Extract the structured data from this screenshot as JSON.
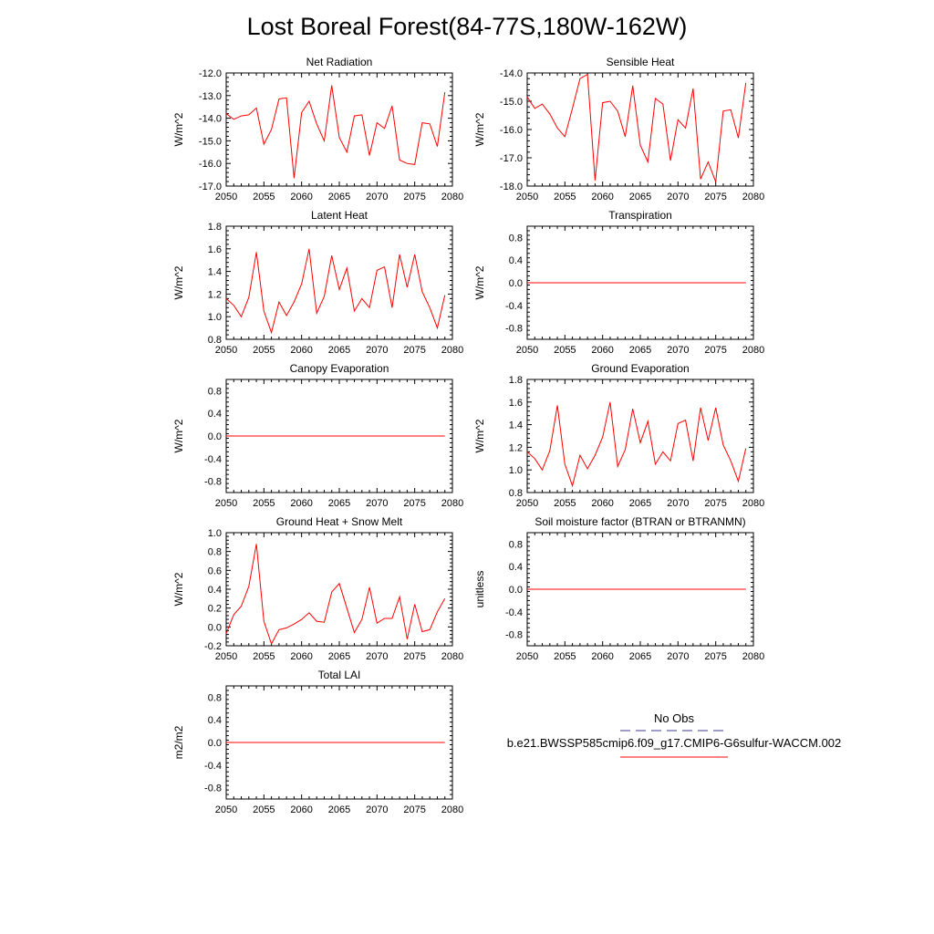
{
  "title": "Lost Boreal Forest(84-77S,180W-162W)",
  "chart_data": [
    {
      "type": "line",
      "title": "Net Radiation",
      "ylabel": "W/m^2",
      "xlim": [
        2050,
        2080
      ],
      "ylim": [
        -17.0,
        -12.0
      ],
      "xticks": [
        2050,
        2055,
        2060,
        2065,
        2070,
        2075,
        2080
      ],
      "xtick_labels": [
        "2050",
        "2055",
        "2060",
        "2065",
        "2070",
        "2075",
        "2080"
      ],
      "yticks": [
        -17.0,
        -16.0,
        -15.0,
        -14.0,
        -13.0,
        -12.0
      ],
      "ytick_labels": [
        "-17.0",
        "-16.0",
        "-15.0",
        "-14.0",
        "-13.0",
        "-12.0"
      ],
      "x": [
        2050,
        2051,
        2052,
        2053,
        2054,
        2055,
        2056,
        2057,
        2058,
        2059,
        2060,
        2061,
        2062,
        2063,
        2064,
        2065,
        2066,
        2067,
        2068,
        2069,
        2070,
        2071,
        2072,
        2073,
        2074,
        2075,
        2076,
        2077,
        2078,
        2079
      ],
      "values": [
        -13.8,
        -14.05,
        -13.9,
        -13.85,
        -13.55,
        -15.15,
        -14.5,
        -13.15,
        -13.1,
        -16.65,
        -13.75,
        -13.25,
        -14.25,
        -15.0,
        -12.55,
        -14.85,
        -15.5,
        -13.9,
        -13.85,
        -15.65,
        -14.2,
        -14.45,
        -13.45,
        -15.85,
        -16.0,
        -16.05,
        -14.2,
        -14.25,
        -15.25,
        -12.85
      ],
      "color": "#ff0000"
    },
    {
      "type": "line",
      "title": "Sensible Heat",
      "ylabel": "W/m^2",
      "xlim": [
        2050,
        2080
      ],
      "ylim": [
        -18.0,
        -14.0
      ],
      "xticks": [
        2050,
        2055,
        2060,
        2065,
        2070,
        2075,
        2080
      ],
      "xtick_labels": [
        "2050",
        "2055",
        "2060",
        "2065",
        "2070",
        "2075",
        "2080"
      ],
      "yticks": [
        -18.0,
        -17.0,
        -16.0,
        -15.0,
        -14.0
      ],
      "ytick_labels": [
        "-18.0",
        "-17.0",
        "-16.0",
        "-15.0",
        "-14.0"
      ],
      "x": [
        2050,
        2051,
        2052,
        2053,
        2054,
        2055,
        2056,
        2057,
        2058,
        2059,
        2060,
        2061,
        2062,
        2063,
        2064,
        2065,
        2066,
        2067,
        2068,
        2069,
        2070,
        2071,
        2072,
        2073,
        2074,
        2075,
        2076,
        2077,
        2078,
        2079
      ],
      "values": [
        -14.85,
        -15.25,
        -15.1,
        -15.45,
        -15.95,
        -16.25,
        -15.25,
        -14.2,
        -14.05,
        -17.8,
        -15.05,
        -15.0,
        -15.35,
        -16.25,
        -14.45,
        -16.55,
        -17.15,
        -14.9,
        -15.1,
        -17.1,
        -15.65,
        -15.95,
        -14.55,
        -17.75,
        -17.15,
        -17.85,
        -15.35,
        -15.3,
        -16.3,
        -14.35
      ],
      "color": "#ff0000"
    },
    {
      "type": "line",
      "title": "Latent Heat",
      "ylabel": "W/m^2",
      "xlim": [
        2050,
        2080
      ],
      "ylim": [
        0.8,
        1.8
      ],
      "xticks": [
        2050,
        2055,
        2060,
        2065,
        2070,
        2075,
        2080
      ],
      "xtick_labels": [
        "2050",
        "2055",
        "2060",
        "2065",
        "2070",
        "2075",
        "2080"
      ],
      "yticks": [
        0.8,
        1.0,
        1.2,
        1.4,
        1.6,
        1.8
      ],
      "ytick_labels": [
        "0.8",
        "1.0",
        "1.2",
        "1.4",
        "1.6",
        "1.8"
      ],
      "x": [
        2050,
        2051,
        2052,
        2053,
        2054,
        2055,
        2056,
        2057,
        2058,
        2059,
        2060,
        2061,
        2062,
        2063,
        2064,
        2065,
        2066,
        2067,
        2068,
        2069,
        2070,
        2071,
        2072,
        2073,
        2074,
        2075,
        2076,
        2077,
        2078,
        2079
      ],
      "values": [
        1.16,
        1.1,
        1.0,
        1.17,
        1.57,
        1.05,
        0.86,
        1.13,
        1.01,
        1.13,
        1.29,
        1.6,
        1.03,
        1.18,
        1.54,
        1.24,
        1.43,
        1.05,
        1.16,
        1.08,
        1.41,
        1.44,
        1.08,
        1.55,
        1.26,
        1.55,
        1.22,
        1.08,
        0.9,
        1.19
      ],
      "color": "#ff0000"
    },
    {
      "type": "line",
      "title": "Transpiration",
      "ylabel": "W/m^2",
      "xlim": [
        2050,
        2080
      ],
      "ylim": [
        -1.0,
        1.0
      ],
      "xticks": [
        2050,
        2055,
        2060,
        2065,
        2070,
        2075,
        2080
      ],
      "xtick_labels": [
        "2050",
        "2055",
        "2060",
        "2065",
        "2070",
        "2075",
        "2080"
      ],
      "yticks": [
        -0.8,
        -0.4,
        0.0,
        0.4,
        0.8
      ],
      "ytick_labels": [
        "-0.8",
        "-0.4",
        "0.0",
        "0.4",
        "0.8"
      ],
      "x": [
        2050,
        2051,
        2052,
        2053,
        2054,
        2055,
        2056,
        2057,
        2058,
        2059,
        2060,
        2061,
        2062,
        2063,
        2064,
        2065,
        2066,
        2067,
        2068,
        2069,
        2070,
        2071,
        2072,
        2073,
        2074,
        2075,
        2076,
        2077,
        2078,
        2079
      ],
      "values": [
        0,
        0,
        0,
        0,
        0,
        0,
        0,
        0,
        0,
        0,
        0,
        0,
        0,
        0,
        0,
        0,
        0,
        0,
        0,
        0,
        0,
        0,
        0,
        0,
        0,
        0,
        0,
        0,
        0,
        0
      ],
      "color": "#ff0000"
    },
    {
      "type": "line",
      "title": "Canopy Evaporation",
      "ylabel": "W/m^2",
      "xlim": [
        2050,
        2080
      ],
      "ylim": [
        -1.0,
        1.0
      ],
      "xticks": [
        2050,
        2055,
        2060,
        2065,
        2070,
        2075,
        2080
      ],
      "xtick_labels": [
        "2050",
        "2055",
        "2060",
        "2065",
        "2070",
        "2075",
        "2080"
      ],
      "yticks": [
        -0.8,
        -0.4,
        0.0,
        0.4,
        0.8
      ],
      "ytick_labels": [
        "-0.8",
        "-0.4",
        "0.0",
        "0.4",
        "0.8"
      ],
      "x": [
        2050,
        2051,
        2052,
        2053,
        2054,
        2055,
        2056,
        2057,
        2058,
        2059,
        2060,
        2061,
        2062,
        2063,
        2064,
        2065,
        2066,
        2067,
        2068,
        2069,
        2070,
        2071,
        2072,
        2073,
        2074,
        2075,
        2076,
        2077,
        2078,
        2079
      ],
      "values": [
        0,
        0,
        0,
        0,
        0,
        0,
        0,
        0,
        0,
        0,
        0,
        0,
        0,
        0,
        0,
        0,
        0,
        0,
        0,
        0,
        0,
        0,
        0,
        0,
        0,
        0,
        0,
        0,
        0,
        0
      ],
      "color": "#ff0000"
    },
    {
      "type": "line",
      "title": "Ground Evaporation",
      "ylabel": "W/m^2",
      "xlim": [
        2050,
        2080
      ],
      "ylim": [
        0.8,
        1.8
      ],
      "xticks": [
        2050,
        2055,
        2060,
        2065,
        2070,
        2075,
        2080
      ],
      "xtick_labels": [
        "2050",
        "2055",
        "2060",
        "2065",
        "2070",
        "2075",
        "2080"
      ],
      "yticks": [
        0.8,
        1.0,
        1.2,
        1.4,
        1.6,
        1.8
      ],
      "ytick_labels": [
        "0.8",
        "1.0",
        "1.2",
        "1.4",
        "1.6",
        "1.8"
      ],
      "x": [
        2050,
        2051,
        2052,
        2053,
        2054,
        2055,
        2056,
        2057,
        2058,
        2059,
        2060,
        2061,
        2062,
        2063,
        2064,
        2065,
        2066,
        2067,
        2068,
        2069,
        2070,
        2071,
        2072,
        2073,
        2074,
        2075,
        2076,
        2077,
        2078,
        2079
      ],
      "values": [
        1.16,
        1.1,
        1.0,
        1.17,
        1.57,
        1.05,
        0.86,
        1.13,
        1.01,
        1.13,
        1.29,
        1.6,
        1.03,
        1.18,
        1.54,
        1.24,
        1.43,
        1.05,
        1.16,
        1.08,
        1.41,
        1.44,
        1.08,
        1.55,
        1.26,
        1.55,
        1.22,
        1.08,
        0.9,
        1.19
      ],
      "color": "#ff0000"
    },
    {
      "type": "line",
      "title": "Ground Heat + Snow Melt",
      "ylabel": "W/m^2",
      "xlim": [
        2050,
        2080
      ],
      "ylim": [
        -0.2,
        1.0
      ],
      "xticks": [
        2050,
        2055,
        2060,
        2065,
        2070,
        2075,
        2080
      ],
      "xtick_labels": [
        "2050",
        "2055",
        "2060",
        "2065",
        "2070",
        "2075",
        "2080"
      ],
      "yticks": [
        -0.2,
        0.0,
        0.2,
        0.4,
        0.6,
        0.8,
        1.0
      ],
      "ytick_labels": [
        "-0.2",
        "0.0",
        "0.2",
        "0.4",
        "0.6",
        "0.8",
        "1.0"
      ],
      "x": [
        2050,
        2051,
        2052,
        2053,
        2054,
        2055,
        2056,
        2057,
        2058,
        2059,
        2060,
        2061,
        2062,
        2063,
        2064,
        2065,
        2066,
        2067,
        2068,
        2069,
        2070,
        2071,
        2072,
        2073,
        2074,
        2075,
        2076,
        2077,
        2078,
        2079
      ],
      "values": [
        -0.07,
        0.13,
        0.22,
        0.43,
        0.88,
        0.06,
        -0.18,
        -0.03,
        -0.01,
        0.03,
        0.08,
        0.15,
        0.06,
        0.05,
        0.37,
        0.46,
        0.2,
        -0.06,
        0.08,
        0.42,
        0.04,
        0.09,
        0.09,
        0.32,
        -0.13,
        0.24,
        -0.05,
        -0.03,
        0.16,
        0.3
      ],
      "color": "#ff0000"
    },
    {
      "type": "line",
      "title": "Soil moisture factor (BTRAN or BTRANMN)",
      "ylabel": "unitless",
      "xlim": [
        2050,
        2080
      ],
      "ylim": [
        -1.0,
        1.0
      ],
      "xticks": [
        2050,
        2055,
        2060,
        2065,
        2070,
        2075,
        2080
      ],
      "xtick_labels": [
        "2050",
        "2055",
        "2060",
        "2065",
        "2070",
        "2075",
        "2080"
      ],
      "yticks": [
        -0.8,
        -0.4,
        0.0,
        0.4,
        0.8
      ],
      "ytick_labels": [
        "-0.8",
        "-0.4",
        "0.0",
        "0.4",
        "0.8"
      ],
      "x": [
        2050,
        2051,
        2052,
        2053,
        2054,
        2055,
        2056,
        2057,
        2058,
        2059,
        2060,
        2061,
        2062,
        2063,
        2064,
        2065,
        2066,
        2067,
        2068,
        2069,
        2070,
        2071,
        2072,
        2073,
        2074,
        2075,
        2076,
        2077,
        2078,
        2079
      ],
      "values": [
        0,
        0,
        0,
        0,
        0,
        0,
        0,
        0,
        0,
        0,
        0,
        0,
        0,
        0,
        0,
        0,
        0,
        0,
        0,
        0,
        0,
        0,
        0,
        0,
        0,
        0,
        0,
        0,
        0,
        0
      ],
      "color": "#ff0000"
    },
    {
      "type": "line",
      "title": "Total LAI",
      "ylabel": "m2/m2",
      "xlim": [
        2050,
        2080
      ],
      "ylim": [
        -1.0,
        1.0
      ],
      "xticks": [
        2050,
        2055,
        2060,
        2065,
        2070,
        2075,
        2080
      ],
      "xtick_labels": [
        "2050",
        "2055",
        "2060",
        "2065",
        "2070",
        "2075",
        "2080"
      ],
      "yticks": [
        -0.8,
        -0.4,
        0.0,
        0.4,
        0.8
      ],
      "ytick_labels": [
        "-0.8",
        "-0.4",
        "0.0",
        "0.4",
        "0.8"
      ],
      "x": [
        2050,
        2051,
        2052,
        2053,
        2054,
        2055,
        2056,
        2057,
        2058,
        2059,
        2060,
        2061,
        2062,
        2063,
        2064,
        2065,
        2066,
        2067,
        2068,
        2069,
        2070,
        2071,
        2072,
        2073,
        2074,
        2075,
        2076,
        2077,
        2078,
        2079
      ],
      "values": [
        0,
        0,
        0,
        0,
        0,
        0,
        0,
        0,
        0,
        0,
        0,
        0,
        0,
        0,
        0,
        0,
        0,
        0,
        0,
        0,
        0,
        0,
        0,
        0,
        0,
        0,
        0,
        0,
        0,
        0
      ],
      "color": "#ff0000"
    }
  ],
  "legend": {
    "items": [
      {
        "label": "No Obs",
        "color": "#3b3b8f",
        "style": "dashed"
      },
      {
        "label": "b.e21.BWSSP585cmip6.f09_g17.CMIP6-G6sulfur-WACCM.002",
        "color": "#ff0000",
        "style": "solid"
      }
    ]
  }
}
